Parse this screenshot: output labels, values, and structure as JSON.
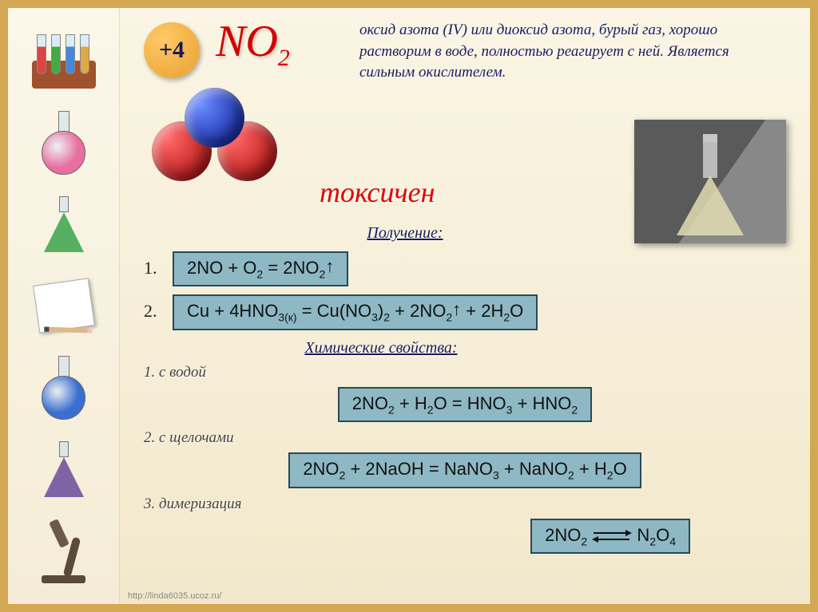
{
  "badge": {
    "label": "+4",
    "bg": "#e8a030",
    "text_color": "#1a1a5a"
  },
  "formula": {
    "text": "NO",
    "subscript": "2",
    "color": "#d00000"
  },
  "description": "оксид азота (IV) или диоксид азота, бурый газ, хорошо растворим в воде, полностью реагирует с ней. Является сильным окислителем.",
  "toxic_label": "токсичен",
  "sections": {
    "obtain": "Получение:",
    "chem": "Химические свойства:",
    "sub1": "1. с водой",
    "sub2": "2. с щелочами",
    "sub3": "3. димеризация"
  },
  "equations": {
    "e1": {
      "num": "1.",
      "html": "2NO + O<sub>2</sub> = 2NO<sub>2</sub><span class='arrow-up'>↑</span>"
    },
    "e2": {
      "num": "2.",
      "html": "Cu + 4HNO<sub>3(к)</sub> = Cu(NO<sub>3</sub>)<sub>2</sub> + 2NO<sub>2</sub><span class='arrow-up'>↑</span> + 2H<sub>2</sub>O"
    },
    "e3": {
      "html": "2NO<sub>2</sub> + H<sub>2</sub>O = HNO<sub>3</sub> + HNO<sub>2</sub>"
    },
    "e4": {
      "html": "2NO<sub>2</sub> + 2NaOH = NaNO<sub>3</sub> + NaNO<sub>2</sub> + H<sub>2</sub>O"
    },
    "e5": {
      "left": "2NO<sub>2</sub>",
      "right": "N<sub>2</sub>O<sub>4</sub>"
    }
  },
  "molecule": {
    "atoms": [
      {
        "name": "N",
        "color": "#001088"
      },
      {
        "name": "O",
        "color": "#a00000"
      },
      {
        "name": "O",
        "color": "#a00000"
      }
    ]
  },
  "sidebar_colors": {
    "tubes": [
      "#d44",
      "#4a4",
      "#48d",
      "#da4"
    ],
    "flask_pink": "#e86fa0",
    "erlen_green": "#3aa24a",
    "flask_blue": "#3a6fd0",
    "erlen_purple": "#6a4a9a"
  },
  "styling": {
    "eq_box_bg": "#8db8c4",
    "eq_box_border": "#2a4a55",
    "page_bg_top": "#faf5e4",
    "page_bg_bottom": "#f2e8cc",
    "frame_color": "#d4a853",
    "text_fontsize_desc": 19,
    "text_fontsize_eq": 22,
    "title_color": "#1a1a5a"
  },
  "footer": "http://linda6035.ucoz.ru/"
}
